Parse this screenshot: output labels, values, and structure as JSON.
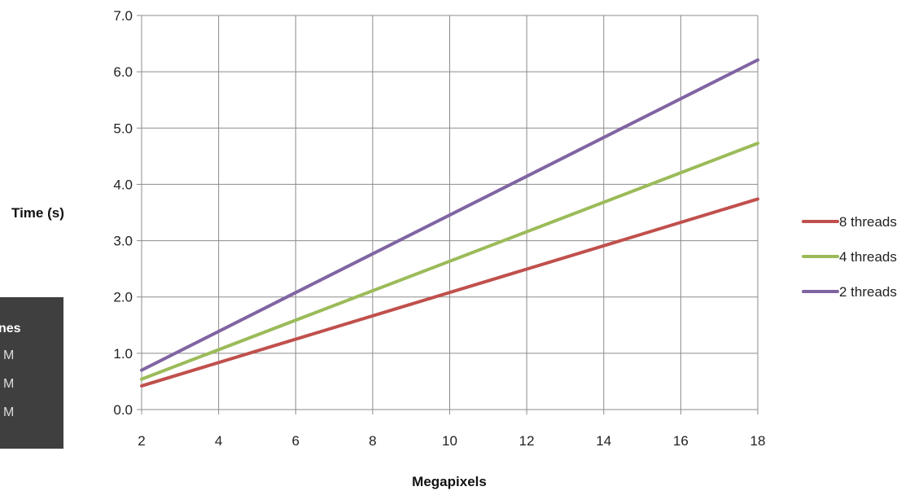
{
  "chart_data": {
    "type": "line",
    "xlabel": "Megapixels",
    "ylabel": "Time (s)",
    "xlim": [
      2,
      18
    ],
    "ylim": [
      0,
      7
    ],
    "xticks": [
      "2",
      "4",
      "6",
      "8",
      "10",
      "12",
      "14",
      "16",
      "18"
    ],
    "yticks": [
      "0.0",
      "1.0",
      "2.0",
      "3.0",
      "4.0",
      "5.0",
      "6.0",
      "7.0"
    ],
    "grid": true,
    "legend_position": "right",
    "series": [
      {
        "name": "8 threads",
        "color": "#c0504d",
        "x": [
          2,
          18
        ],
        "y": [
          0.42,
          3.74
        ]
      },
      {
        "name": "4 threads",
        "color": "#9bbb59",
        "x": [
          2,
          18
        ],
        "y": [
          0.54,
          4.73
        ]
      },
      {
        "name": "2 threads",
        "color": "#8064a2",
        "x": [
          2,
          18
        ],
        "y": [
          0.7,
          6.21
        ]
      }
    ]
  },
  "overlay": {
    "title": "nes",
    "items": [
      "M",
      "M",
      "M"
    ]
  }
}
